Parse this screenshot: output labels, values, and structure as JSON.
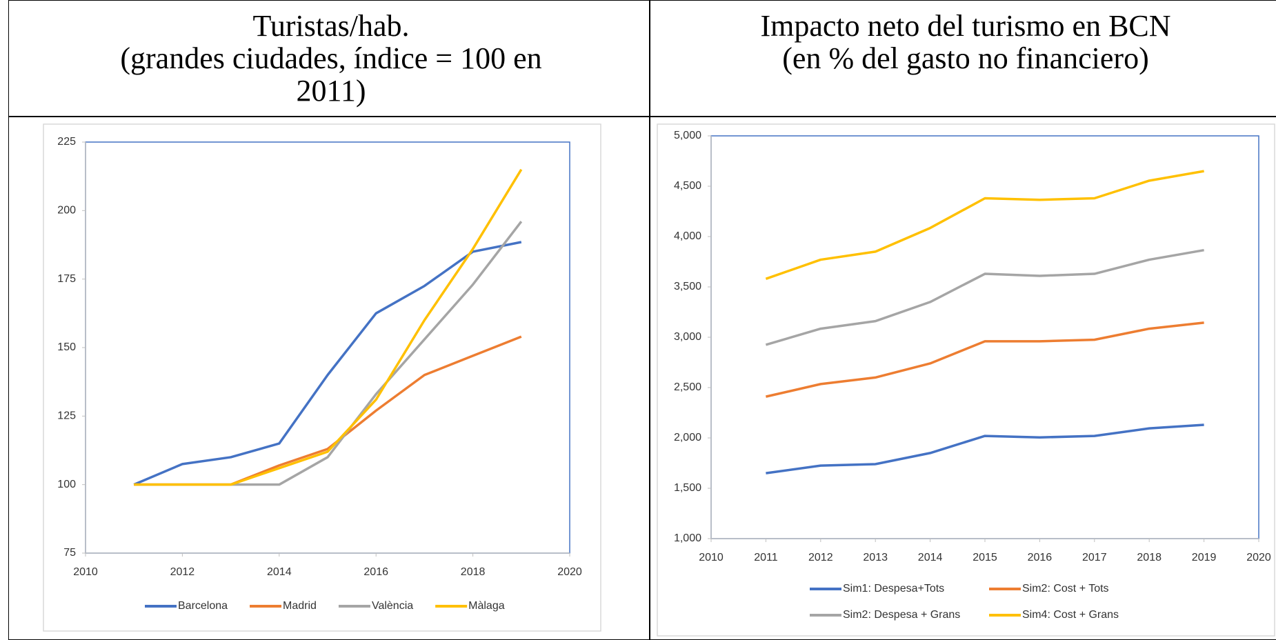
{
  "chart_data": [
    {
      "type": "line",
      "title": "Turistas/hab.\n(grandes ciudades, índice = 100 en 2011)",
      "x": [
        2011,
        2012,
        2013,
        2014,
        2015,
        2016,
        2017,
        2018,
        2019
      ],
      "xlim": [
        2010,
        2020
      ],
      "xticks": [
        2010,
        2012,
        2014,
        2016,
        2018,
        2020
      ],
      "ylim": [
        75,
        225
      ],
      "yticks": [
        75,
        100,
        125,
        150,
        175,
        200,
        225
      ],
      "series": [
        {
          "name": "Barcelona",
          "color": "#4472c4",
          "values": [
            100,
            107.5,
            110,
            115,
            140,
            162.5,
            172.5,
            185,
            188.5
          ]
        },
        {
          "name": "Madrid",
          "color": "#ed7d31",
          "values": [
            100,
            100,
            100,
            107,
            113,
            127,
            140,
            147,
            154
          ]
        },
        {
          "name": "València",
          "color": "#a5a5a5",
          "values": [
            100,
            100,
            100,
            100,
            110,
            133,
            153,
            173,
            196
          ]
        },
        {
          "name": "Màlaga",
          "color": "#ffc000",
          "values": [
            100,
            100,
            100,
            106,
            112,
            131,
            160,
            186,
            215
          ]
        }
      ]
    },
    {
      "type": "line",
      "title": "Impacto neto del turismo en BCN\n(en % del gasto no financiero)",
      "x": [
        2011,
        2012,
        2013,
        2014,
        2015,
        2016,
        2017,
        2018,
        2019
      ],
      "xlim": [
        2010,
        2020
      ],
      "xticks": [
        2010,
        2011,
        2012,
        2013,
        2014,
        2015,
        2016,
        2017,
        2018,
        2019,
        2020
      ],
      "ylim": [
        1000,
        5000
      ],
      "yticks": [
        {
          "value": 1000,
          "label": "1,000"
        },
        {
          "value": 1500,
          "label": "1,500"
        },
        {
          "value": 2000,
          "label": "2,000"
        },
        {
          "value": 2500,
          "label": "2,500"
        },
        {
          "value": 3000,
          "label": "3,000"
        },
        {
          "value": 3500,
          "label": "3,500"
        },
        {
          "value": 4000,
          "label": "4,000"
        },
        {
          "value": 4500,
          "label": "4,500"
        },
        {
          "value": 5000,
          "label": "5,000"
        }
      ],
      "series": [
        {
          "name": "Sim1: Despesa+Tots",
          "color": "#4472c4",
          "values": [
            1650,
            1725,
            1740,
            1850,
            2020,
            2005,
            2020,
            2095,
            2130
          ]
        },
        {
          "name": "Sim2: Cost + Tots",
          "color": "#ed7d31",
          "values": [
            2410,
            2535,
            2600,
            2740,
            2960,
            2960,
            2975,
            3085,
            3145
          ]
        },
        {
          "name": "Sim2: Despesa + Grans",
          "color": "#a5a5a5",
          "values": [
            2925,
            3085,
            3160,
            3350,
            3630,
            3610,
            3630,
            3770,
            3865
          ]
        },
        {
          "name": "Sim4: Cost + Grans",
          "color": "#ffc000",
          "values": [
            3580,
            3770,
            3850,
            4085,
            4380,
            4365,
            4380,
            4555,
            4650
          ]
        }
      ]
    }
  ]
}
